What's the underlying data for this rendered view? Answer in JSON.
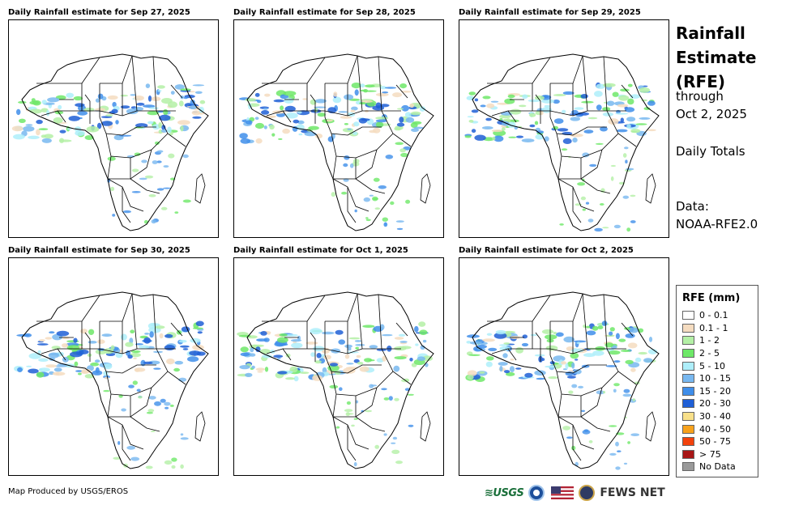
{
  "panels": [
    {
      "title": "Daily Rainfall estimate for Sep 27, 2025"
    },
    {
      "title": "Daily Rainfall estimate for Sep 28, 2025"
    },
    {
      "title": "Daily Rainfall estimate for Sep 29, 2025"
    },
    {
      "title": "Daily Rainfall estimate for Sep 30, 2025"
    },
    {
      "title": "Daily Rainfall estimate for Oct 1, 2025"
    },
    {
      "title": "Daily Rainfall estimate for Oct 2, 2025"
    }
  ],
  "side": {
    "title_line1": "Rainfall",
    "title_line2": "Estimate",
    "title_line3": "(RFE)",
    "through": "through",
    "date": "Oct 2, 2025",
    "period": "Daily Totals",
    "data_label": "Data:",
    "data_source": "NOAA-RFE2.0"
  },
  "legend": {
    "title": "RFE (mm)",
    "items": [
      {
        "label": "0 - 0.1",
        "color": "#ffffff"
      },
      {
        "label": "0.1 - 1",
        "color": "#f5dcc0"
      },
      {
        "label": "1 - 2",
        "color": "#b4f0a6"
      },
      {
        "label": "2 - 5",
        "color": "#6ee868"
      },
      {
        "label": "5 - 10",
        "color": "#aeeefa"
      },
      {
        "label": "10 - 15",
        "color": "#78b8f0"
      },
      {
        "label": "15 - 20",
        "color": "#3f8eea"
      },
      {
        "label": "20 - 30",
        "color": "#1f5fd6"
      },
      {
        "label": "30 - 40",
        "color": "#f8e08a"
      },
      {
        "label": "40 - 50",
        "color": "#f7a21c"
      },
      {
        "label": "50 - 75",
        "color": "#f2420c"
      },
      {
        "label": "> 75",
        "color": "#a81616"
      },
      {
        "label": "No Data",
        "color": "#9a9a9a"
      }
    ]
  },
  "footer": {
    "produced_by": "Map Produced by USGS/EROS",
    "usgs": "USGS",
    "fews": "FEWS NET"
  }
}
